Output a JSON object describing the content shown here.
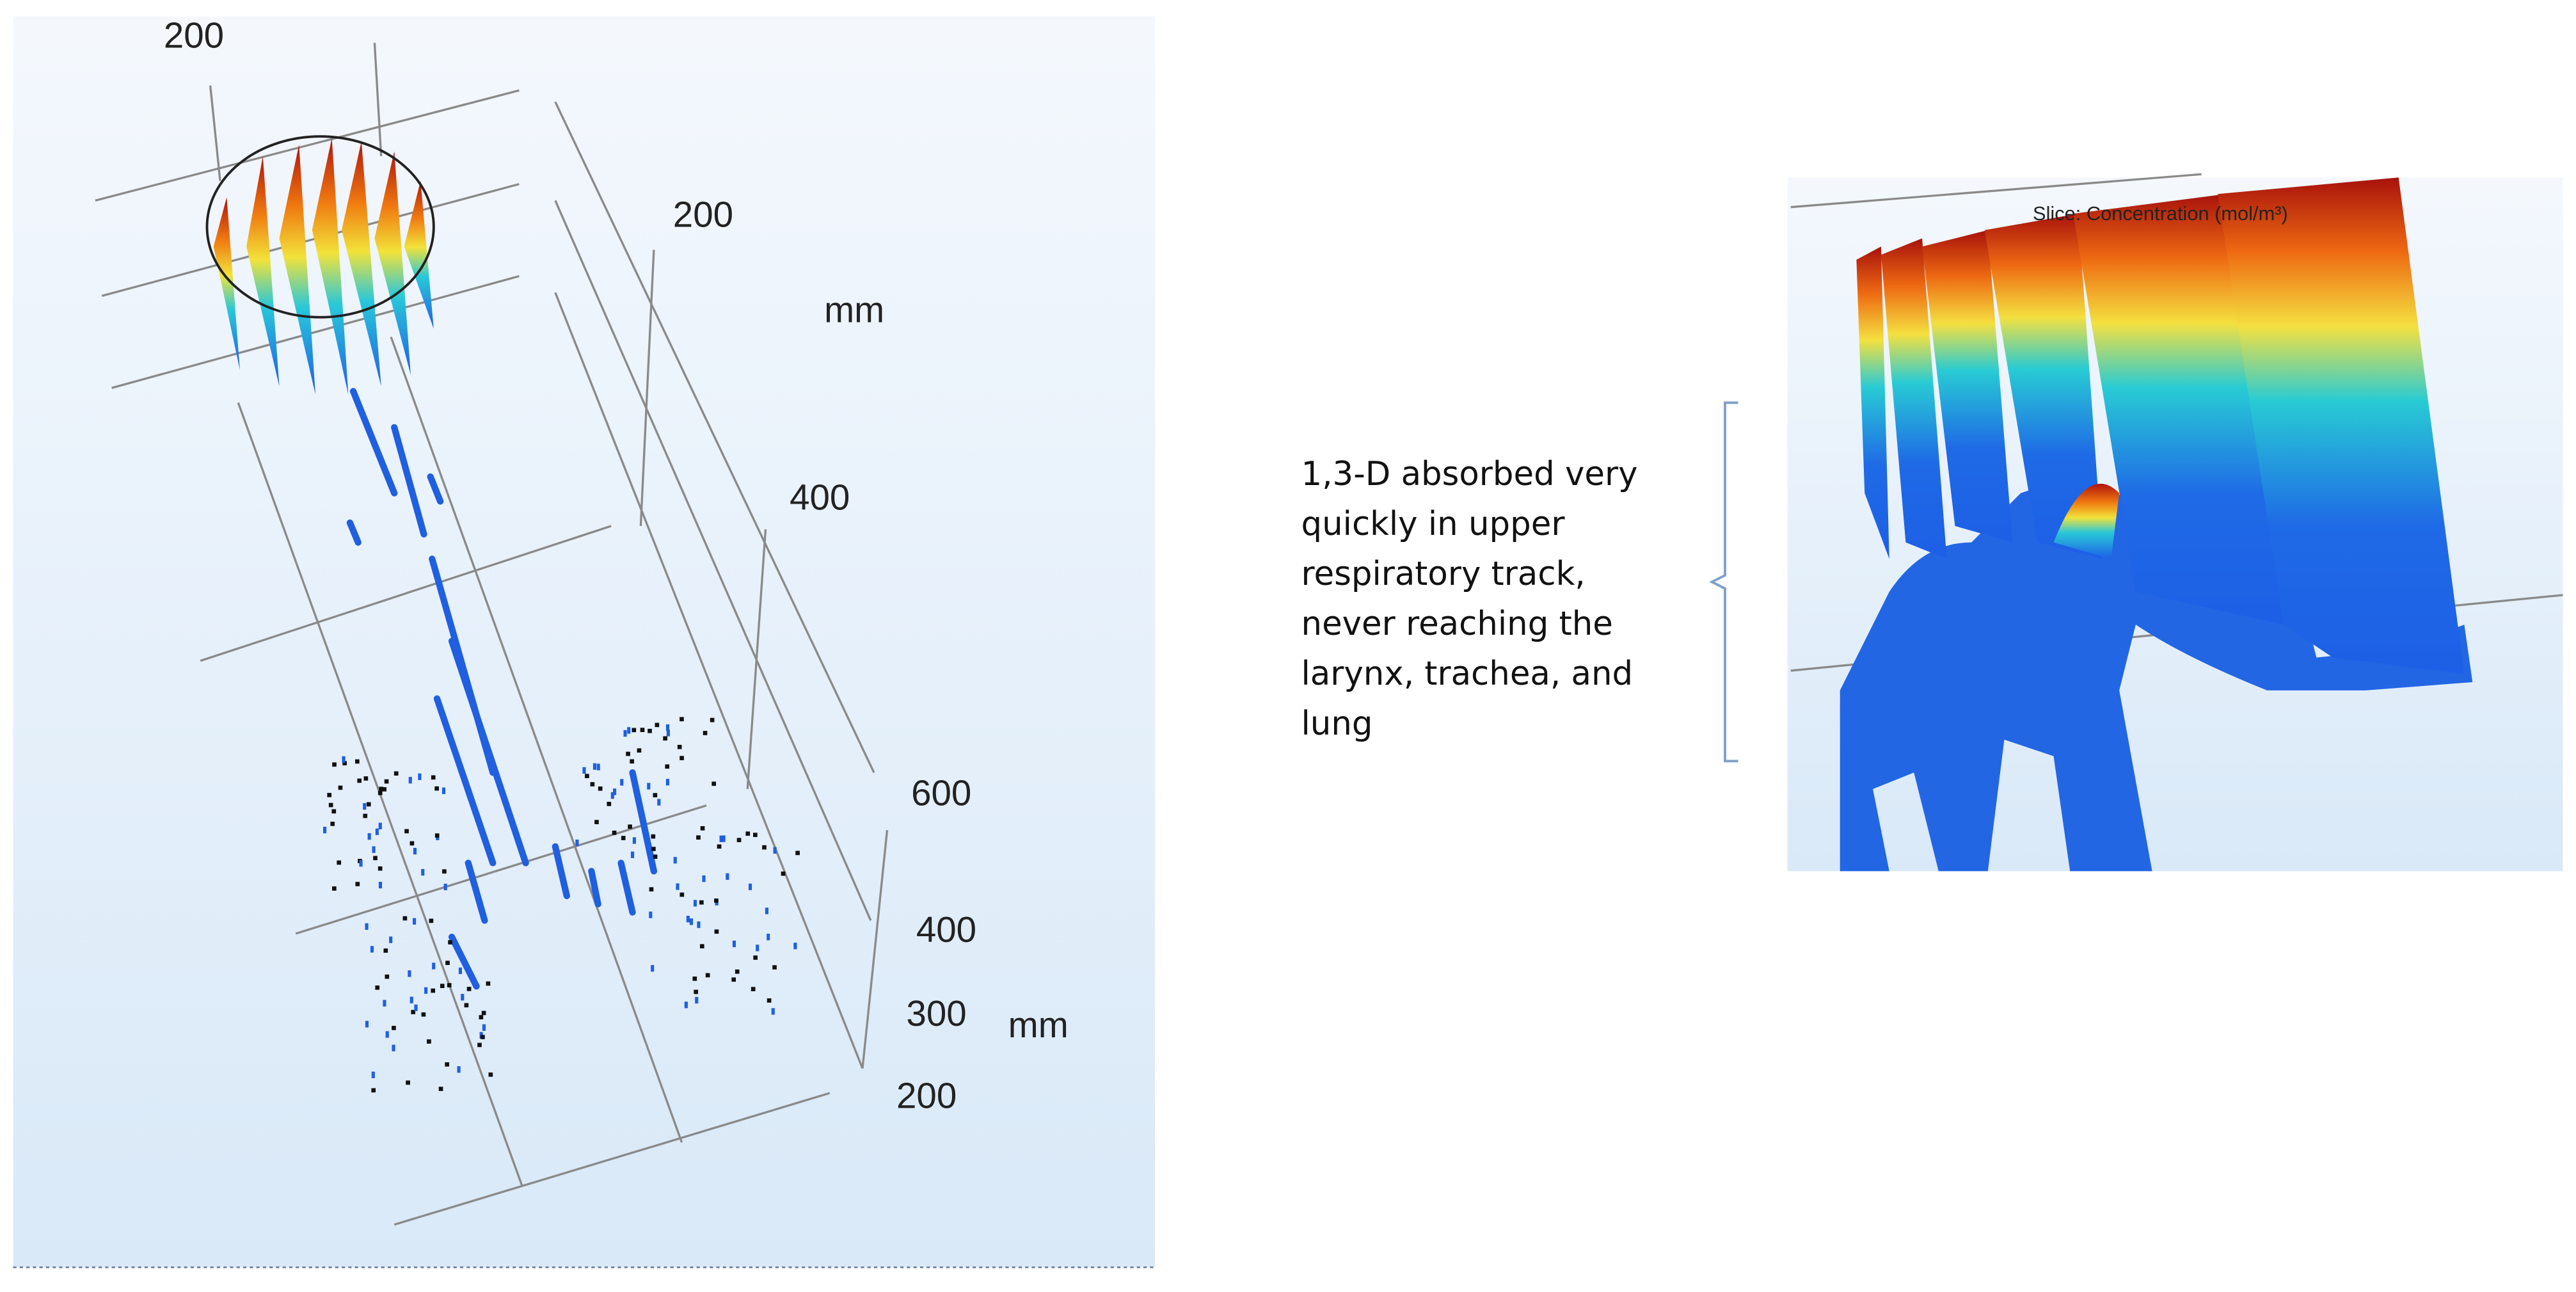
{
  "left_view": {
    "axis_labels": [
      "200",
      "200",
      "mm",
      "400",
      "600",
      "400",
      "300",
      "mm",
      "200"
    ]
  },
  "right_view": {
    "title": "Slice: Concentration (mol/m³)"
  },
  "annotation": {
    "lines": [
      "1,3-D absorbed very",
      "quickly in upper",
      "respiratory track,",
      "never reaching the",
      "larynx, trachea, and",
      "lung"
    ]
  }
}
